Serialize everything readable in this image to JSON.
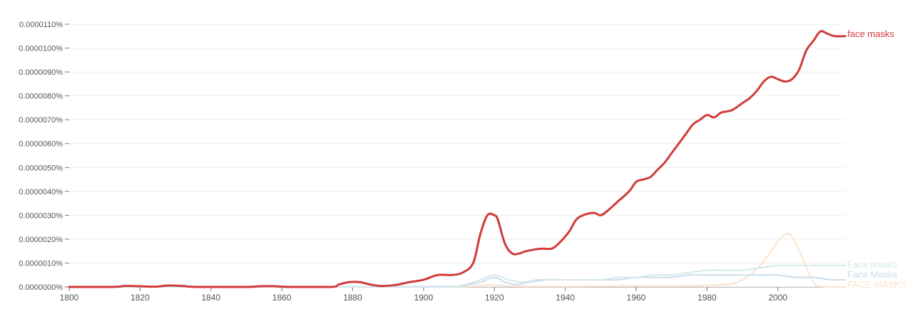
{
  "chart_data": {
    "type": "line",
    "title": "",
    "xlabel": "",
    "ylabel": "",
    "xlim": [
      1800,
      2019
    ],
    "ylim": [
      0,
      1.1e-05
    ],
    "grid": true,
    "legend": "labels at right end of lines",
    "x_ticks": [
      1800,
      1820,
      1840,
      1860,
      1880,
      1900,
      1920,
      1940,
      1960,
      1980,
      2000
    ],
    "x_tick_labels": [
      "1800",
      "1820",
      "1840",
      "1860",
      "1880",
      "1900",
      "1920",
      "1940",
      "1960",
      "1980",
      "2000"
    ],
    "y_ticks": [
      0,
      1e-06,
      2e-06,
      3e-06,
      4e-06,
      5e-06,
      6e-06,
      7e-06,
      8e-06,
      9e-06,
      1e-05,
      1.1e-05
    ],
    "y_tick_labels": [
      "0.0000000%",
      "0.0000010%",
      "0.0000020%",
      "0.0000030%",
      "0.0000040%",
      "0.0000050%",
      "0.0000060%",
      "0.0000070%",
      "0.0000080%",
      "0.0000090%",
      "0.0000100%",
      "0.0000110%"
    ],
    "series": [
      {
        "name": "FACE MASKS",
        "color": "#fbe3cc",
        "points": [
          [
            1800,
            0
          ],
          [
            1900,
            0
          ],
          [
            1915,
            5e-08
          ],
          [
            1920,
            8e-08
          ],
          [
            1925,
            3e-08
          ],
          [
            1940,
            2e-08
          ],
          [
            1960,
            4e-08
          ],
          [
            1975,
            5e-08
          ],
          [
            1985,
            1e-07
          ],
          [
            1990,
            3e-07
          ],
          [
            1995,
            9e-07
          ],
          [
            2000,
            1.9e-06
          ],
          [
            2002,
            2.2e-06
          ],
          [
            2004,
            2.1e-06
          ],
          [
            2007,
            1.2e-06
          ],
          [
            2010,
            2e-07
          ],
          [
            2013,
            0
          ],
          [
            2019,
            0
          ]
        ]
      },
      {
        "name": "Face Masks",
        "color": "#c9ddec",
        "points": [
          [
            1800,
            0
          ],
          [
            1900,
            0
          ],
          [
            1910,
            3e-08
          ],
          [
            1916,
            2e-07
          ],
          [
            1920,
            4e-07
          ],
          [
            1923,
            2e-07
          ],
          [
            1926,
            1e-07
          ],
          [
            1930,
            2e-07
          ],
          [
            1935,
            3e-07
          ],
          [
            1940,
            3e-07
          ],
          [
            1945,
            3e-07
          ],
          [
            1950,
            3e-07
          ],
          [
            1955,
            3e-07
          ],
          [
            1960,
            4e-07
          ],
          [
            1965,
            4e-07
          ],
          [
            1970,
            4e-07
          ],
          [
            1975,
            5e-07
          ],
          [
            1980,
            5e-07
          ],
          [
            1985,
            5e-07
          ],
          [
            1990,
            5e-07
          ],
          [
            1995,
            5e-07
          ],
          [
            2000,
            5e-07
          ],
          [
            2005,
            4e-07
          ],
          [
            2010,
            4e-07
          ],
          [
            2015,
            3e-07
          ],
          [
            2019,
            3e-07
          ]
        ]
      },
      {
        "name": "Face masks",
        "color": "#d5e8ea",
        "points": [
          [
            1800,
            0
          ],
          [
            1900,
            2e-08
          ],
          [
            1910,
            5e-08
          ],
          [
            1916,
            3e-07
          ],
          [
            1920,
            5e-07
          ],
          [
            1924,
            3e-07
          ],
          [
            1928,
            2e-07
          ],
          [
            1932,
            3e-07
          ],
          [
            1936,
            3e-07
          ],
          [
            1940,
            3e-07
          ],
          [
            1945,
            3e-07
          ],
          [
            1950,
            3e-07
          ],
          [
            1955,
            4e-07
          ],
          [
            1960,
            4e-07
          ],
          [
            1965,
            5e-07
          ],
          [
            1970,
            5e-07
          ],
          [
            1975,
            6e-07
          ],
          [
            1980,
            7e-07
          ],
          [
            1985,
            7e-07
          ],
          [
            1990,
            7e-07
          ],
          [
            1995,
            8e-07
          ],
          [
            2000,
            9e-07
          ],
          [
            2005,
            9e-07
          ],
          [
            2010,
            9e-07
          ],
          [
            2015,
            9e-07
          ],
          [
            2019,
            9e-07
          ]
        ]
      },
      {
        "name": "face masks",
        "color": "#d13a3a",
        "points": [
          [
            1800,
            0
          ],
          [
            1812,
            0
          ],
          [
            1816,
            4e-08
          ],
          [
            1820,
            3e-08
          ],
          [
            1824,
            1e-08
          ],
          [
            1828,
            6e-08
          ],
          [
            1832,
            4e-08
          ],
          [
            1836,
            0
          ],
          [
            1850,
            0
          ],
          [
            1854,
            3e-08
          ],
          [
            1858,
            3e-08
          ],
          [
            1862,
            0
          ],
          [
            1874,
            0
          ],
          [
            1876,
            1e-07
          ],
          [
            1879,
            2e-07
          ],
          [
            1882,
            2e-07
          ],
          [
            1885,
            1e-07
          ],
          [
            1888,
            4e-08
          ],
          [
            1892,
            8e-08
          ],
          [
            1896,
            2e-07
          ],
          [
            1900,
            3e-07
          ],
          [
            1904,
            5e-07
          ],
          [
            1908,
            5e-07
          ],
          [
            1911,
            6e-07
          ],
          [
            1914,
            1e-06
          ],
          [
            1916,
            2.2e-06
          ],
          [
            1918,
            3e-06
          ],
          [
            1920,
            3e-06
          ],
          [
            1921,
            2.8e-06
          ],
          [
            1923,
            1.8e-06
          ],
          [
            1925,
            1.4e-06
          ],
          [
            1927,
            1.4e-06
          ],
          [
            1929,
            1.5e-06
          ],
          [
            1933,
            1.6e-06
          ],
          [
            1936,
            1.6e-06
          ],
          [
            1938,
            1.8e-06
          ],
          [
            1941,
            2.3e-06
          ],
          [
            1943,
            2.8e-06
          ],
          [
            1945,
            3e-06
          ],
          [
            1948,
            3.1e-06
          ],
          [
            1950,
            3e-06
          ],
          [
            1952,
            3.2e-06
          ],
          [
            1955,
            3.6e-06
          ],
          [
            1958,
            4e-06
          ],
          [
            1960,
            4.4e-06
          ],
          [
            1962,
            4.5e-06
          ],
          [
            1964,
            4.6e-06
          ],
          [
            1966,
            4.9e-06
          ],
          [
            1968,
            5.2e-06
          ],
          [
            1970,
            5.6e-06
          ],
          [
            1972,
            6e-06
          ],
          [
            1974,
            6.4e-06
          ],
          [
            1976,
            6.8e-06
          ],
          [
            1978,
            7e-06
          ],
          [
            1980,
            7.2e-06
          ],
          [
            1982,
            7.1e-06
          ],
          [
            1984,
            7.3e-06
          ],
          [
            1987,
            7.4e-06
          ],
          [
            1990,
            7.7e-06
          ],
          [
            1992,
            7.9e-06
          ],
          [
            1994,
            8.2e-06
          ],
          [
            1996,
            8.6e-06
          ],
          [
            1998,
            8.8e-06
          ],
          [
            2000,
            8.7e-06
          ],
          [
            2002,
            8.6e-06
          ],
          [
            2004,
            8.7e-06
          ],
          [
            2006,
            9.1e-06
          ],
          [
            2008,
            9.9e-06
          ],
          [
            2010,
            1.03e-05
          ],
          [
            2012,
            1.07e-05
          ],
          [
            2014,
            1.06e-05
          ],
          [
            2016,
            1.05e-05
          ],
          [
            2019,
            1.05e-05
          ]
        ]
      }
    ],
    "right_labels": [
      {
        "series": "face masks",
        "text": "face masks",
        "color": "#d13a3a"
      },
      {
        "series": "Face masks",
        "text": "Face masks",
        "color": "#d5e8ea"
      },
      {
        "series": "Face Masks",
        "text": "Face Masks",
        "color": "#c9ddec"
      },
      {
        "series": "FACE MASKS",
        "text": "FACE MASKS",
        "color": "#fbe3cc"
      }
    ]
  }
}
